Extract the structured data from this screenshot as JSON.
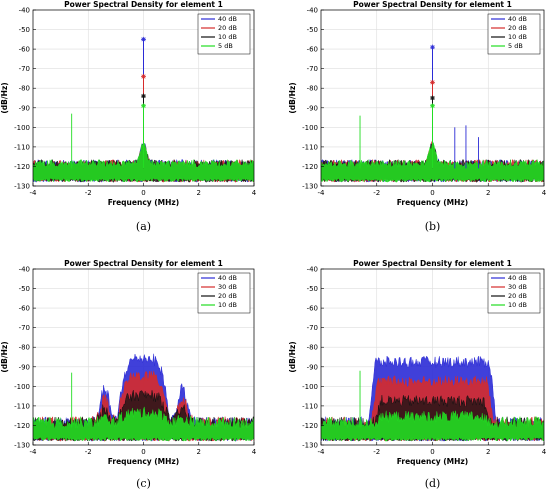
{
  "chart_data": [
    {
      "type": "line",
      "title": "Power Spectral Density for element 1",
      "xlabel": "Frequency (MHz)",
      "ylabel": "(dB/Hz)",
      "xlim": [
        -4,
        4
      ],
      "ylim": [
        -130,
        -40
      ],
      "x_ticks": [
        "-4",
        "-2",
        "0",
        "2",
        "4"
      ],
      "y_ticks": [
        "-40",
        "-50",
        "-60",
        "-70",
        "-80",
        "-90",
        "-100",
        "-110",
        "-120",
        "-130"
      ],
      "grid": true,
      "legend_position": "top-right",
      "caption": "(a)",
      "series": [
        {
          "name": "40 dB",
          "color": "#2b2bd6",
          "noise_floor": -121,
          "peak_x": 0,
          "peak_y": -55
        },
        {
          "name": "20 dB",
          "color": "#d62b2b",
          "noise_floor": -121,
          "peak_x": 0,
          "peak_y": -74
        },
        {
          "name": "10 dB",
          "color": "#111111",
          "noise_floor": -121,
          "peak_x": 0,
          "peak_y": -84
        },
        {
          "name": "5 dB",
          "color": "#22dd22",
          "noise_floor": -121,
          "peak_x": 0,
          "peak_y": -89
        }
      ],
      "spurs": [
        {
          "x": -2.6,
          "y": -93
        }
      ]
    },
    {
      "type": "line",
      "title": "Power Spectral Density for element 1",
      "xlabel": "Frequency (MHz)",
      "ylabel": "(dB/Hz)",
      "xlim": [
        -4,
        4
      ],
      "ylim": [
        -130,
        -40
      ],
      "x_ticks": [
        "-4",
        "-2",
        "0",
        "2",
        "4"
      ],
      "y_ticks": [
        "-40",
        "-50",
        "-60",
        "-70",
        "-80",
        "-90",
        "-100",
        "-110",
        "-120",
        "-130"
      ],
      "grid": true,
      "legend_position": "top-right",
      "caption": "(b)",
      "series": [
        {
          "name": "40 dB",
          "color": "#2b2bd6",
          "noise_floor": -121,
          "peak_x": 0,
          "peak_y": -59
        },
        {
          "name": "20 dB",
          "color": "#d62b2b",
          "noise_floor": -121,
          "peak_x": 0,
          "peak_y": -77
        },
        {
          "name": "10 dB",
          "color": "#111111",
          "noise_floor": -121,
          "peak_x": 0,
          "peak_y": -85
        },
        {
          "name": "5 dB",
          "color": "#22dd22",
          "noise_floor": -121,
          "peak_x": 0,
          "peak_y": -89
        }
      ],
      "spurs": [
        {
          "x": -2.6,
          "y": -94
        },
        {
          "x": 0.8,
          "y": -100
        },
        {
          "x": 1.2,
          "y": -99
        },
        {
          "x": 1.65,
          "y": -105
        }
      ]
    },
    {
      "type": "area",
      "title": "Power Spectral Density for element 1",
      "xlabel": "Frequency (MHz)",
      "ylabel": "(dB/Hz)",
      "xlim": [
        -4,
        4
      ],
      "ylim": [
        -130,
        -40
      ],
      "x_ticks": [
        "-4",
        "-2",
        "0",
        "2",
        "4"
      ],
      "y_ticks": [
        "-40",
        "-50",
        "-60",
        "-70",
        "-80",
        "-90",
        "-100",
        "-110",
        "-120",
        "-130"
      ],
      "grid": true,
      "legend_position": "top-right",
      "caption": "(c)",
      "series": [
        {
          "name": "40 dB",
          "color": "#2b2bd6",
          "noise_floor": -121,
          "center_level": -88,
          "side_level": -104
        },
        {
          "name": "30 dB",
          "color": "#d62b2b",
          "noise_floor": -121,
          "center_level": -97,
          "side_level": -109
        },
        {
          "name": "20 dB",
          "color": "#111111",
          "noise_floor": -121,
          "center_level": -107,
          "side_level": -114
        },
        {
          "name": "10 dB",
          "color": "#22dd22",
          "noise_floor": -121,
          "center_level": -116,
          "side_level": -119
        }
      ],
      "spurs": [
        {
          "x": -2.6,
          "y": -93
        }
      ]
    },
    {
      "type": "area",
      "title": "Power Spectral Density for element 1",
      "xlabel": "Frequency (MHz)",
      "ylabel": "(dB/Hz)",
      "xlim": [
        -4,
        4
      ],
      "ylim": [
        -130,
        -40
      ],
      "x_ticks": [
        "-4",
        "-2",
        "0",
        "2",
        "4"
      ],
      "y_ticks": [
        "-40",
        "-50",
        "-60",
        "-70",
        "-80",
        "-90",
        "-100",
        "-110",
        "-120",
        "-130"
      ],
      "grid": true,
      "legend_position": "top-right",
      "caption": "(d)",
      "series": [
        {
          "name": "40 dB",
          "color": "#2b2bd6",
          "noise_floor": -121,
          "band_level": -90,
          "band_range": [
            -2.3,
            2.3
          ]
        },
        {
          "name": "30 dB",
          "color": "#d62b2b",
          "noise_floor": -121,
          "band_level": -100,
          "band_range": [
            -2.2,
            2.2
          ]
        },
        {
          "name": "20 dB",
          "color": "#111111",
          "noise_floor": -121,
          "band_level": -110,
          "band_range": [
            -2.1,
            2.1
          ]
        },
        {
          "name": "10 dB",
          "color": "#22dd22",
          "noise_floor": -121,
          "band_level": -118,
          "band_range": [
            -2.0,
            2.0
          ]
        }
      ],
      "spurs": [
        {
          "x": -2.6,
          "y": -92
        }
      ]
    }
  ]
}
